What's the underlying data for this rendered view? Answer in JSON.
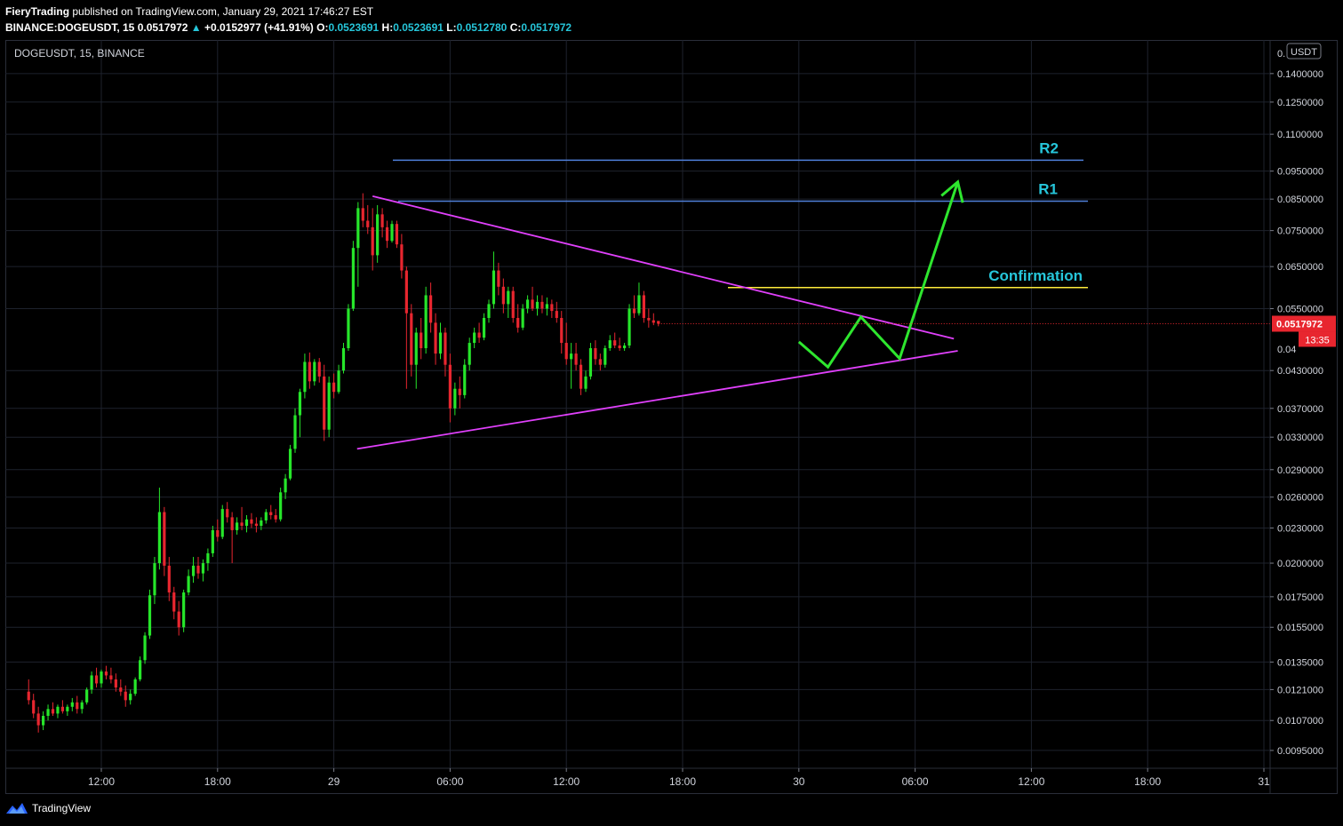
{
  "header": {
    "author": "FieryTrading",
    "published": "published on TradingView.com, January 29, 2021 17:46:27 EST",
    "symbol_line": "BINANCE:DOGEUSDT, 15",
    "price": "0.0517972",
    "change": "+0.0152977 (+41.91%)",
    "o_label": "O:",
    "o_value": "0.0523691",
    "h_label": "H:",
    "h_value": "0.0523691",
    "l_label": "L:",
    "l_value": "0.0512780",
    "c_label": "C:",
    "c_value": "0.0517972"
  },
  "chart_title": "DOGEUSDT, 15, BINANCE",
  "currency_badge": "USDT",
  "footer": {
    "brand": "TradingView"
  },
  "colors": {
    "up": "#26e62a",
    "down": "#e8262f",
    "grid": "#1e222d",
    "triangle": "#e040fb",
    "resistance": "#4f7fd9",
    "confirmation": "#ffeb3b",
    "projection": "#2ee62e",
    "label_text": "#26c6da",
    "price_badge": "#e8262f"
  },
  "chart_data": {
    "type": "candlestick",
    "y_axis": {
      "scale": "log",
      "ticks": [
        "0.1400000",
        "0.1250000",
        "0.1100000",
        "0.0950000",
        "0.0850000",
        "0.0750000",
        "0.0650000",
        "0.0550000",
        "0.0430000",
        "0.0370000",
        "0.0330000",
        "0.0290000",
        "0.0260000",
        "0.0230000",
        "0.0200000",
        "0.0175000",
        "0.0155000",
        "0.0135000",
        "0.0121000",
        "0.0107000",
        "0.0095000"
      ],
      "top_tick_partial": "0.",
      "partial_tick": "0.04"
    },
    "x_axis": {
      "ticks": [
        {
          "label": "12:00",
          "t": 12
        },
        {
          "label": "18:00",
          "t": 18
        },
        {
          "label": "29",
          "t": 24
        },
        {
          "label": "06:00",
          "t": 30
        },
        {
          "label": "12:00",
          "t": 36
        },
        {
          "label": "18:00",
          "t": 42
        },
        {
          "label": "30",
          "t": 48
        },
        {
          "label": "06:00",
          "t": 54
        },
        {
          "label": "12:00",
          "t": 60
        },
        {
          "label": "18:00",
          "t": 66
        },
        {
          "label": "31",
          "t": 72
        }
      ]
    },
    "last_price": "0.0517972",
    "countdown": "13:35",
    "candles": [
      [
        0.012,
        0.0126,
        0.0114,
        0.0116
      ],
      [
        0.0116,
        0.0119,
        0.0108,
        0.011
      ],
      [
        0.011,
        0.0113,
        0.0102,
        0.0105
      ],
      [
        0.0105,
        0.0111,
        0.0103,
        0.0109
      ],
      [
        0.0109,
        0.0114,
        0.0107,
        0.0112
      ],
      [
        0.0112,
        0.0115,
        0.0109,
        0.011
      ],
      [
        0.011,
        0.0114,
        0.0108,
        0.0113
      ],
      [
        0.0113,
        0.0116,
        0.011,
        0.0111
      ],
      [
        0.0111,
        0.0114,
        0.0109,
        0.0113
      ],
      [
        0.0113,
        0.0117,
        0.0111,
        0.0115
      ],
      [
        0.0115,
        0.0118,
        0.011,
        0.0112
      ],
      [
        0.0112,
        0.0116,
        0.011,
        0.0115
      ],
      [
        0.0115,
        0.0122,
        0.0114,
        0.0121
      ],
      [
        0.0121,
        0.013,
        0.0119,
        0.0128
      ],
      [
        0.0128,
        0.0132,
        0.0122,
        0.0124
      ],
      [
        0.0124,
        0.0131,
        0.0122,
        0.013
      ],
      [
        0.013,
        0.0133,
        0.0126,
        0.0128
      ],
      [
        0.0128,
        0.0132,
        0.0124,
        0.0126
      ],
      [
        0.0126,
        0.0129,
        0.012,
        0.0122
      ],
      [
        0.0122,
        0.0126,
        0.0118,
        0.012
      ],
      [
        0.012,
        0.0123,
        0.0113,
        0.0116
      ],
      [
        0.0116,
        0.0121,
        0.0114,
        0.0119
      ],
      [
        0.0119,
        0.0127,
        0.0118,
        0.0126
      ],
      [
        0.0126,
        0.0138,
        0.0125,
        0.0136
      ],
      [
        0.0136,
        0.0152,
        0.0134,
        0.015
      ],
      [
        0.015,
        0.018,
        0.0148,
        0.0176
      ],
      [
        0.0176,
        0.0205,
        0.017,
        0.02
      ],
      [
        0.02,
        0.027,
        0.0195,
        0.0245
      ],
      [
        0.0245,
        0.025,
        0.019,
        0.0198
      ],
      [
        0.0198,
        0.0205,
        0.0172,
        0.0178
      ],
      [
        0.0178,
        0.0182,
        0.016,
        0.0165
      ],
      [
        0.0165,
        0.0172,
        0.015,
        0.0155
      ],
      [
        0.0155,
        0.018,
        0.0152,
        0.0178
      ],
      [
        0.0178,
        0.0195,
        0.0176,
        0.019
      ],
      [
        0.019,
        0.0205,
        0.0185,
        0.0198
      ],
      [
        0.0198,
        0.0205,
        0.0188,
        0.0192
      ],
      [
        0.0192,
        0.0203,
        0.0186,
        0.02
      ],
      [
        0.02,
        0.0212,
        0.0194,
        0.0208
      ],
      [
        0.0208,
        0.0232,
        0.0205,
        0.0228
      ],
      [
        0.0228,
        0.0238,
        0.0218,
        0.0222
      ],
      [
        0.0222,
        0.0252,
        0.022,
        0.0248
      ],
      [
        0.0248,
        0.0255,
        0.0235,
        0.024
      ],
      [
        0.024,
        0.0245,
        0.02,
        0.0228
      ],
      [
        0.0228,
        0.024,
        0.0224,
        0.0235
      ],
      [
        0.0235,
        0.025,
        0.0228,
        0.0232
      ],
      [
        0.0232,
        0.0242,
        0.0226,
        0.0238
      ],
      [
        0.0238,
        0.0244,
        0.023,
        0.0234
      ],
      [
        0.0234,
        0.024,
        0.0226,
        0.0232
      ],
      [
        0.0232,
        0.024,
        0.0228,
        0.0237
      ],
      [
        0.0237,
        0.0248,
        0.0234,
        0.0245
      ],
      [
        0.0245,
        0.0252,
        0.0238,
        0.0242
      ],
      [
        0.0242,
        0.0248,
        0.0235,
        0.0238
      ],
      [
        0.0238,
        0.027,
        0.0236,
        0.0265
      ],
      [
        0.0265,
        0.0285,
        0.0258,
        0.028
      ],
      [
        0.028,
        0.032,
        0.0278,
        0.0315
      ],
      [
        0.0315,
        0.037,
        0.031,
        0.036
      ],
      [
        0.036,
        0.04,
        0.033,
        0.0395
      ],
      [
        0.0395,
        0.046,
        0.0385,
        0.0445
      ],
      [
        0.0445,
        0.0462,
        0.04,
        0.0412
      ],
      [
        0.0412,
        0.045,
        0.0405,
        0.0445
      ],
      [
        0.0445,
        0.0452,
        0.041,
        0.042
      ],
      [
        0.042,
        0.044,
        0.0325,
        0.034
      ],
      [
        0.034,
        0.042,
        0.033,
        0.041
      ],
      [
        0.041,
        0.0425,
        0.0385,
        0.0395
      ],
      [
        0.0395,
        0.044,
        0.0392,
        0.043
      ],
      [
        0.043,
        0.048,
        0.0425,
        0.047
      ],
      [
        0.047,
        0.056,
        0.0465,
        0.055
      ],
      [
        0.055,
        0.072,
        0.0545,
        0.07
      ],
      [
        0.07,
        0.084,
        0.06,
        0.082
      ],
      [
        0.082,
        0.087,
        0.076,
        0.078
      ],
      [
        0.078,
        0.083,
        0.074,
        0.076
      ],
      [
        0.076,
        0.082,
        0.064,
        0.068
      ],
      [
        0.068,
        0.083,
        0.066,
        0.08
      ],
      [
        0.08,
        0.082,
        0.073,
        0.076
      ],
      [
        0.076,
        0.078,
        0.07,
        0.072
      ],
      [
        0.072,
        0.078,
        0.0715,
        0.077
      ],
      [
        0.077,
        0.078,
        0.07,
        0.071
      ],
      [
        0.071,
        0.074,
        0.062,
        0.064
      ],
      [
        0.064,
        0.065,
        0.04,
        0.054
      ],
      [
        0.054,
        0.056,
        0.042,
        0.044
      ],
      [
        0.044,
        0.051,
        0.04,
        0.05
      ],
      [
        0.05,
        0.053,
        0.045,
        0.047
      ],
      [
        0.047,
        0.06,
        0.046,
        0.058
      ],
      [
        0.058,
        0.061,
        0.05,
        0.052
      ],
      [
        0.052,
        0.054,
        0.044,
        0.046
      ],
      [
        0.046,
        0.052,
        0.045,
        0.05
      ],
      [
        0.05,
        0.051,
        0.042,
        0.044
      ],
      [
        0.044,
        0.046,
        0.035,
        0.037
      ],
      [
        0.037,
        0.041,
        0.036,
        0.04
      ],
      [
        0.04,
        0.042,
        0.037,
        0.039
      ],
      [
        0.039,
        0.045,
        0.0385,
        0.044
      ],
      [
        0.044,
        0.049,
        0.043,
        0.048
      ],
      [
        0.048,
        0.051,
        0.047,
        0.05
      ],
      [
        0.05,
        0.052,
        0.048,
        0.049
      ],
      [
        0.049,
        0.054,
        0.0485,
        0.053
      ],
      [
        0.053,
        0.057,
        0.052,
        0.056
      ],
      [
        0.056,
        0.069,
        0.055,
        0.064
      ],
      [
        0.064,
        0.066,
        0.058,
        0.06
      ],
      [
        0.06,
        0.062,
        0.054,
        0.056
      ],
      [
        0.056,
        0.06,
        0.053,
        0.059
      ],
      [
        0.059,
        0.06,
        0.052,
        0.053
      ],
      [
        0.053,
        0.056,
        0.05,
        0.051
      ],
      [
        0.051,
        0.056,
        0.0505,
        0.055
      ],
      [
        0.055,
        0.058,
        0.054,
        0.057
      ],
      [
        0.057,
        0.06,
        0.0545,
        0.055
      ],
      [
        0.055,
        0.058,
        0.0535,
        0.0565
      ],
      [
        0.0565,
        0.058,
        0.054,
        0.055
      ],
      [
        0.055,
        0.0575,
        0.0535,
        0.056
      ],
      [
        0.056,
        0.057,
        0.053,
        0.0545
      ],
      [
        0.0545,
        0.0565,
        0.052,
        0.053
      ],
      [
        0.053,
        0.0545,
        0.046,
        0.048
      ],
      [
        0.048,
        0.052,
        0.044,
        0.045
      ],
      [
        0.045,
        0.048,
        0.04,
        0.046
      ],
      [
        0.046,
        0.048,
        0.043,
        0.044
      ],
      [
        0.044,
        0.045,
        0.039,
        0.04
      ],
      [
        0.04,
        0.043,
        0.0395,
        0.042
      ],
      [
        0.042,
        0.048,
        0.0415,
        0.047
      ],
      [
        0.047,
        0.0485,
        0.044,
        0.045
      ],
      [
        0.045,
        0.046,
        0.043,
        0.044
      ],
      [
        0.044,
        0.0475,
        0.0435,
        0.047
      ],
      [
        0.047,
        0.0495,
        0.0465,
        0.0485
      ],
      [
        0.0485,
        0.05,
        0.047,
        0.0475
      ],
      [
        0.0475,
        0.049,
        0.0465,
        0.047
      ],
      [
        0.047,
        0.048,
        0.0465,
        0.0475
      ],
      [
        0.0475,
        0.056,
        0.047,
        0.055
      ],
      [
        0.055,
        0.058,
        0.053,
        0.054
      ],
      [
        0.054,
        0.061,
        0.0535,
        0.058
      ],
      [
        0.058,
        0.059,
        0.052,
        0.053
      ],
      [
        0.053,
        0.055,
        0.051,
        0.0525
      ],
      [
        0.0525,
        0.054,
        0.0515,
        0.052
      ],
      [
        0.0523691,
        0.0523691,
        0.051278,
        0.0517972
      ]
    ],
    "drawings": {
      "R2": {
        "label": "R2",
        "price": 0.0992
      },
      "R1": {
        "label": "R1",
        "price": 0.0843
      },
      "confirmation": {
        "label": "Confirmation",
        "price": 0.0598
      },
      "upper_trendline": {
        "from": {
          "t": 26.0,
          "price": 0.086
        },
        "to": {
          "t": 56.0,
          "price": 0.0488
        }
      },
      "lower_trendline": {
        "from": {
          "t": 25.2,
          "price": 0.0315
        },
        "to": {
          "t": 56.2,
          "price": 0.0465
        }
      },
      "projection_path": [
        {
          "t": 48.0,
          "price": 0.0482
        },
        {
          "t": 49.5,
          "price": 0.0436
        },
        {
          "t": 51.2,
          "price": 0.0532
        },
        {
          "t": 53.2,
          "price": 0.0451
        },
        {
          "t": 56.2,
          "price": 0.091
        }
      ]
    }
  }
}
